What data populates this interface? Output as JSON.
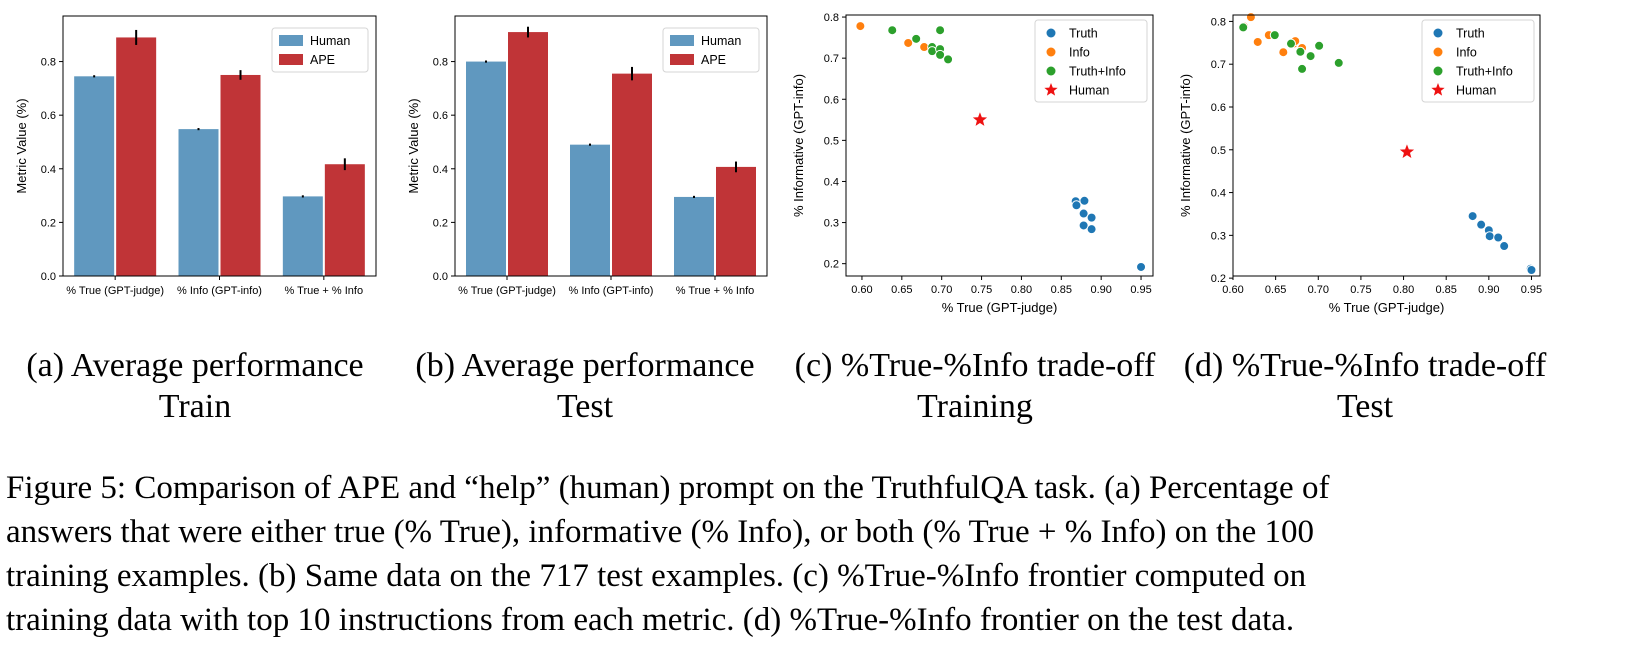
{
  "colors": {
    "human": "#6098bf",
    "ape": "#c03437",
    "truth": "#1f77b4",
    "info": "#ff7f0e",
    "truth_info": "#2ca02c",
    "human_star": "#ee1111"
  },
  "panels": [
    {
      "caption_line1": "(a) Average performance",
      "caption_line2": "Train"
    },
    {
      "caption_line1": "(b) Average performance",
      "caption_line2": "Test"
    },
    {
      "caption_line1": "(c) %True-%Info trade-off",
      "caption_line2": "Training"
    },
    {
      "caption_line1": "(d) %True-%Info trade-off",
      "caption_line2": "Test"
    }
  ],
  "figure_caption": [
    "Figure 5: Comparison of APE and “help” (human) prompt on the TruthfulQA task. (a) Percentage of",
    "answers that were either true (% True), informative (% Info), or both (% True + % Info) on the 100",
    "training examples. (b) Same data on the 717 test examples. (c) %True-%Info frontier computed on",
    "training data with top 10 instructions from each metric. (d) %True-%Info frontier on the test data."
  ],
  "chart_data": [
    {
      "type": "bar",
      "categories": [
        "% True (GPT-judge)",
        "% Info (GPT-info)",
        "% True + % Info"
      ],
      "series": [
        {
          "name": "Human",
          "values": [
            0.745,
            0.548,
            0.297
          ],
          "errors": [
            0.004,
            0.004,
            0.004
          ]
        },
        {
          "name": "APE",
          "values": [
            0.89,
            0.75,
            0.417
          ],
          "errors": [
            0.028,
            0.018,
            0.022
          ]
        }
      ],
      "xlabel": "",
      "ylabel": "Metric Value (%)",
      "ylim": [
        0,
        0.97
      ],
      "yticks": [
        "0.0",
        "0.2",
        "0.4",
        "0.6",
        "0.8"
      ],
      "legend": "top-right",
      "grid": false
    },
    {
      "type": "bar",
      "categories": [
        "% True (GPT-judge)",
        "% Info (GPT-info)",
        "% True + % Info"
      ],
      "series": [
        {
          "name": "Human",
          "values": [
            0.8,
            0.49,
            0.295
          ],
          "errors": [
            0.004,
            0.004,
            0.004
          ]
        },
        {
          "name": "APE",
          "values": [
            0.91,
            0.755,
            0.407
          ],
          "errors": [
            0.02,
            0.025,
            0.02
          ]
        }
      ],
      "xlabel": "",
      "ylabel": "Metric Value (%)",
      "ylim": [
        0,
        0.97
      ],
      "yticks": [
        "0.0",
        "0.2",
        "0.4",
        "0.6",
        "0.8"
      ],
      "legend": "top-right",
      "grid": false
    },
    {
      "type": "scatter",
      "xlabel": "% True (GPT-judge)",
      "ylabel": "% Informative (GPT-info)",
      "xlim": [
        0.58,
        0.965
      ],
      "ylim": [
        0.17,
        0.805
      ],
      "xticks": [
        "0.60",
        "0.65",
        "0.70",
        "0.75",
        "0.80",
        "0.85",
        "0.90",
        "0.95"
      ],
      "yticks": [
        "0.2",
        "0.3",
        "0.4",
        "0.5",
        "0.6",
        "0.7",
        "0.8"
      ],
      "legend": "top-right",
      "grid": false,
      "series": [
        {
          "name": "Truth",
          "marker": "circle",
          "points": [
            [
              0.868,
              0.352
            ],
            [
              0.879,
              0.353
            ],
            [
              0.869,
              0.342
            ],
            [
              0.878,
              0.322
            ],
            [
              0.888,
              0.312
            ],
            [
              0.878,
              0.293
            ],
            [
              0.888,
              0.284
            ],
            [
              0.95,
              0.192
            ]
          ]
        },
        {
          "name": "Info",
          "marker": "circle",
          "points": [
            [
              0.598,
              0.778
            ],
            [
              0.658,
              0.737
            ],
            [
              0.678,
              0.727
            ],
            [
              0.688,
              0.717
            ],
            [
              0.697,
              0.712
            ]
          ]
        },
        {
          "name": "Truth+Info",
          "marker": "circle",
          "points": [
            [
              0.638,
              0.768
            ],
            [
              0.698,
              0.768
            ],
            [
              0.668,
              0.747
            ],
            [
              0.688,
              0.727
            ],
            [
              0.688,
              0.717
            ],
            [
              0.698,
              0.722
            ],
            [
              0.698,
              0.708
            ],
            [
              0.708,
              0.697
            ]
          ]
        },
        {
          "name": "Human",
          "marker": "star",
          "points": [
            [
              0.748,
              0.55
            ]
          ]
        }
      ]
    },
    {
      "type": "scatter",
      "xlabel": "% True (GPT-judge)",
      "ylabel": "% Informative (GPT-info)",
      "xlim": [
        0.6,
        0.96
      ],
      "ylim": [
        0.205,
        0.815
      ],
      "xticks": [
        "0.60",
        "0.65",
        "0.70",
        "0.75",
        "0.80",
        "0.85",
        "0.90",
        "0.95"
      ],
      "yticks": [
        "0.2",
        "0.3",
        "0.4",
        "0.5",
        "0.6",
        "0.7",
        "0.8"
      ],
      "legend": "top-right",
      "grid": false,
      "series": [
        {
          "name": "Truth",
          "marker": "circle",
          "points": [
            [
              0.881,
              0.345
            ],
            [
              0.891,
              0.325
            ],
            [
              0.9,
              0.312
            ],
            [
              0.901,
              0.298
            ],
            [
              0.911,
              0.295
            ],
            [
              0.918,
              0.275
            ],
            [
              0.949,
              0.222
            ],
            [
              0.95,
              0.219
            ]
          ]
        },
        {
          "name": "Info",
          "marker": "circle",
          "points": [
            [
              0.613,
              0.788
            ],
            [
              0.621,
              0.81
            ],
            [
              0.629,
              0.752
            ],
            [
              0.642,
              0.768
            ],
            [
              0.659,
              0.728
            ],
            [
              0.671,
              0.748
            ],
            [
              0.673,
              0.754
            ],
            [
              0.681,
              0.738
            ]
          ]
        },
        {
          "name": "Truth+Info",
          "marker": "circle",
          "points": [
            [
              0.612,
              0.786
            ],
            [
              0.649,
              0.768
            ],
            [
              0.668,
              0.748
            ],
            [
              0.679,
              0.729
            ],
            [
              0.681,
              0.689
            ],
            [
              0.691,
              0.719
            ],
            [
              0.701,
              0.743
            ],
            [
              0.724,
              0.703
            ]
          ]
        },
        {
          "name": "Human",
          "marker": "star",
          "points": [
            [
              0.804,
              0.495
            ]
          ]
        }
      ]
    }
  ]
}
